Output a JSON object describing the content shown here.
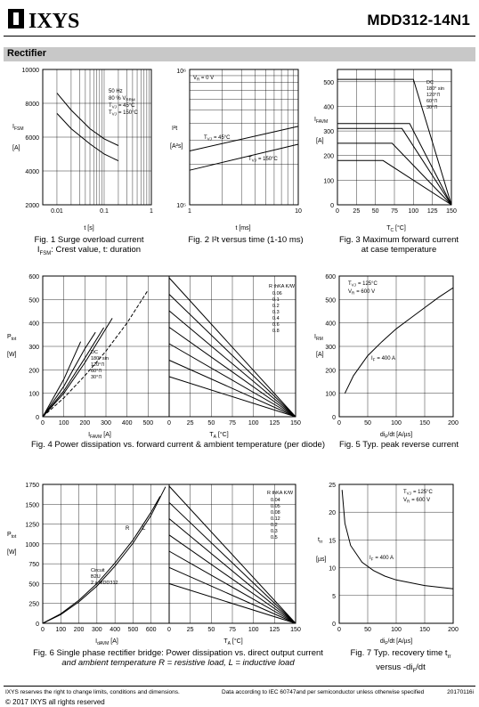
{
  "header": {
    "logo_text": "IXYS",
    "part_number": "MDD312-14N1"
  },
  "section": {
    "title": "Rectifier"
  },
  "figures": {
    "fig1": {
      "caption1": "Fig. 1  Surge overload current",
      "caption2_sym": "I",
      "caption2_sub": "FSM",
      "caption2_rest": ": Crest value, t: duration",
      "ylabel": "I",
      "ylabel_sub": "FSM",
      "yunit": "[A]",
      "xlabel": "t  [s]",
      "legend": [
        "50 Hz",
        "80 % V",
        "T",
        "= 45°C",
        "T",
        "= 150°C"
      ],
      "legend_subs": [
        "RRM",
        "VJ",
        "VJ"
      ]
    },
    "fig2": {
      "caption": "Fig. 2  I²t versus time (1-10 ms)",
      "ylabel": "I²t",
      "yunit": "[A²s]",
      "xlabel": "t  [ms]",
      "label_vr": "V",
      "label_vr_sub": "R",
      "label_vr_rest": " = 0 V",
      "label_45": "= 45°C",
      "label_150": "= 150°C"
    },
    "fig3": {
      "caption1": "Fig. 3  Maximum forward current",
      "caption2": "at case temperature",
      "ylabel": "I",
      "ylabel_sub": "FAVM",
      "yunit": "[A]",
      "xlabel": "T",
      "xlabel_sub": "C",
      "xunit": " [°C]",
      "legend": [
        "DC",
        "180° sin",
        "120°⊓",
        "60°⊓",
        "30°⊓"
      ]
    },
    "fig4": {
      "caption": "Fig. 4  Power dissipation vs. forward current & ambient temperature (per diode)",
      "ylabel": "P",
      "ylabel_sub": "tot",
      "yunit": "[W]",
      "xlabel_left": "I",
      "xlabel_left_sub": "FAVM",
      "xlabel_left_unit": "  [A]",
      "xlabel_right": "T",
      "xlabel_right_sub": "A",
      "xlabel_right_unit": " [°C]",
      "legend": [
        "DC",
        "180° sin",
        "120°⊓",
        "60°⊓",
        "30°⊓"
      ],
      "rthka_title": "R",
      "rthka_sub": "thKA",
      "rthka_unit": " K/W",
      "rthka_values": [
        "0.06",
        "0.1",
        "0.2",
        "0.3",
        "0.4",
        "0.6",
        "0.8"
      ]
    },
    "fig5": {
      "caption": "Fig. 5  Typ. peak reverse current",
      "ylabel": "I",
      "ylabel_sub": "RM",
      "yunit": "[A]",
      "xlabel": "di",
      "xlabel_sub": "F",
      "xunit": "/dt  [A/µs]",
      "cond1": "= 125°C",
      "cond2": "= 600 V",
      "curve_label": "= 400 A"
    },
    "fig6": {
      "caption1": "Fig. 6  Single phase rectifier bridge: Power dissipation vs. direct output current",
      "caption2": "and ambient temperature   R = resistive load,  L = inductive load",
      "ylabel": "P",
      "ylabel_sub": "tot",
      "yunit": "[W]",
      "xlabel_left": "I",
      "xlabel_left_sub": "dAVM",
      "xlabel_left_unit": "  [A]",
      "xlabel_right": "T",
      "xlabel_right_sub": "A",
      "xlabel_right_unit": " [°C]",
      "circuit": [
        "Circuit",
        "B2U",
        "2 x MDD312"
      ],
      "label_r": "R",
      "label_l": "L",
      "rthka_title": "R",
      "rthka_sub": "thKA",
      "rthka_unit": " K/W",
      "rthka_values": [
        "0.04",
        "0.05",
        "0.08",
        "0.12",
        "0.2",
        "0.3",
        "0.5"
      ]
    },
    "fig7": {
      "caption1": "Fig. 7  Typ. recovery time t",
      "caption1_sub": "rr",
      "caption2": "versus -di",
      "caption2_sub": "F",
      "caption2_rest": "/dt",
      "ylabel": "t",
      "ylabel_sub": "rr",
      "yunit": "[µs]",
      "xlabel": "di",
      "xlabel_sub": "F",
      "xunit": "/dt  [A/µs]",
      "cond1": "= 125°C",
      "cond2": "= 600 V",
      "curve_label": "= 400 A"
    }
  },
  "chart_data": [
    {
      "type": "line",
      "id": "fig1",
      "title": "Surge overload current",
      "xlabel": "t [s]",
      "ylabel": "IFSM [A]",
      "xscale": "log",
      "xlim": [
        0.005,
        1
      ],
      "ylim": [
        2000,
        10000
      ],
      "x_ticks": [
        "0.01",
        "0.1",
        "1"
      ],
      "y_ticks": [
        2000,
        4000,
        6000,
        8000,
        10000
      ],
      "series": [
        {
          "name": "TVJ = 45°C",
          "x": [
            0.01,
            0.02,
            0.05,
            0.1,
            0.2
          ],
          "y": [
            8600,
            7600,
            6500,
            5900,
            5500
          ]
        },
        {
          "name": "TVJ = 150°C",
          "x": [
            0.01,
            0.02,
            0.05,
            0.1,
            0.2
          ],
          "y": [
            7400,
            6500,
            5600,
            5000,
            4600
          ]
        }
      ]
    },
    {
      "type": "line",
      "id": "fig2",
      "title": "I²t versus time (1-10 ms)",
      "xlabel": "t [ms]",
      "ylabel": "I²t [A²s]",
      "xscale": "log",
      "yscale": "log",
      "xlim": [
        1,
        10
      ],
      "ylim": [
        100000,
        1000000
      ],
      "x_ticks": [
        "1",
        "10"
      ],
      "y_ticks": [
        "10⁵",
        "10⁶"
      ],
      "series": [
        {
          "name": "TVJ = 45°C",
          "x": [
            1,
            10
          ],
          "y": [
            250000,
            380000
          ]
        },
        {
          "name": "TVJ = 150°C",
          "x": [
            1,
            10
          ],
          "y": [
            180000,
            280000
          ]
        }
      ]
    },
    {
      "type": "line",
      "id": "fig3",
      "title": "Maximum forward current at case temperature",
      "xlabel": "TC [°C]",
      "ylabel": "IFAVM [A]",
      "xlim": [
        0,
        150
      ],
      "ylim": [
        0,
        550
      ],
      "x_ticks": [
        0,
        25,
        50,
        75,
        100,
        125,
        150
      ],
      "y_ticks": [
        0,
        100,
        200,
        300,
        400,
        500
      ],
      "series": [
        {
          "name": "DC",
          "x": [
            0,
            100,
            150
          ],
          "y": [
            510,
            510,
            0
          ]
        },
        {
          "name": "180° sin",
          "x": [
            0,
            95,
            150
          ],
          "y": [
            330,
            330,
            0
          ]
        },
        {
          "name": "120°⊓",
          "x": [
            0,
            85,
            150
          ],
          "y": [
            310,
            310,
            0
          ]
        },
        {
          "name": "60°⊓",
          "x": [
            0,
            72,
            150
          ],
          "y": [
            250,
            250,
            0
          ]
        },
        {
          "name": "30°⊓",
          "x": [
            0,
            60,
            150
          ],
          "y": [
            180,
            180,
            0
          ]
        }
      ]
    },
    {
      "type": "line",
      "id": "fig4",
      "title": "Power dissipation vs. forward current & ambient temperature (per diode)",
      "xlabel": "IFAVM [A] / TA [°C]",
      "ylabel": "Ptot [W]",
      "xlim": [
        0,
        600
      ],
      "ylim": [
        0,
        600
      ],
      "x_ticks_left": [
        0,
        100,
        200,
        300,
        400,
        500
      ],
      "x_ticks_right": [
        0,
        25,
        50,
        75,
        100,
        125,
        150
      ],
      "y_ticks": [
        0,
        100,
        200,
        300,
        400,
        500,
        600
      ],
      "series": [
        {
          "name": "DC",
          "x": [
            0,
            100,
            200,
            300,
            400,
            500
          ],
          "y": [
            0,
            80,
            175,
            280,
            400,
            540
          ]
        },
        {
          "name": "180° sin",
          "x": [
            0,
            100,
            200,
            330
          ],
          "y": [
            0,
            100,
            230,
            420
          ]
        },
        {
          "name": "120°⊓",
          "x": [
            0,
            100,
            200,
            290
          ],
          "y": [
            0,
            110,
            250,
            380
          ]
        },
        {
          "name": "60°⊓",
          "x": [
            0,
            100,
            200,
            250
          ],
          "y": [
            0,
            130,
            290,
            360
          ]
        },
        {
          "name": "30°⊓",
          "x": [
            0,
            100,
            180
          ],
          "y": [
            0,
            160,
            320
          ]
        }
      ],
      "rthka": [
        "0.06",
        "0.1",
        "0.2",
        "0.3",
        "0.4",
        "0.6",
        "0.8"
      ]
    },
    {
      "type": "line",
      "id": "fig5",
      "title": "Typ. peak reverse current",
      "xlabel": "diF/dt [A/µs]",
      "ylabel": "IRM [A]",
      "xlim": [
        0,
        200
      ],
      "ylim": [
        0,
        600
      ],
      "x_ticks": [
        0,
        50,
        100,
        150,
        200
      ],
      "y_ticks": [
        0,
        100,
        200,
        300,
        400,
        500,
        600
      ],
      "series": [
        {
          "name": "IF = 400 A",
          "x": [
            10,
            25,
            50,
            75,
            100,
            125,
            150,
            175,
            200
          ],
          "y": [
            100,
            175,
            260,
            320,
            375,
            420,
            465,
            510,
            550
          ]
        }
      ]
    },
    {
      "type": "line",
      "id": "fig6",
      "title": "Single phase rectifier bridge: Power dissipation vs. direct output current and ambient temperature",
      "xlabel": "IdAVM [A] / TA [°C]",
      "ylabel": "Ptot [W]",
      "xlim": [
        0,
        700
      ],
      "ylim": [
        0,
        1750
      ],
      "x_ticks_left": [
        0,
        100,
        200,
        300,
        400,
        500,
        600
      ],
      "x_ticks_right": [
        0,
        25,
        50,
        75,
        100,
        125,
        150
      ],
      "y_ticks": [
        0,
        250,
        500,
        750,
        1000,
        1250,
        1500,
        1750
      ],
      "series": [
        {
          "name": "R",
          "x": [
            0,
            100,
            200,
            300,
            400,
            500,
            600,
            650
          ],
          "y": [
            0,
            120,
            290,
            500,
            760,
            1050,
            1400,
            1600
          ]
        },
        {
          "name": "L",
          "x": [
            0,
            100,
            200,
            300,
            400,
            500,
            600,
            680
          ],
          "y": [
            0,
            110,
            270,
            470,
            720,
            1010,
            1360,
            1720
          ]
        }
      ],
      "rthka": [
        "0.04",
        "0.05",
        "0.08",
        "0.12",
        "0.2",
        "0.3",
        "0.5"
      ]
    },
    {
      "type": "line",
      "id": "fig7",
      "title": "Typ. recovery time trr versus -diF/dt",
      "xlabel": "diF/dt [A/µs]",
      "ylabel": "trr [µs]",
      "xlim": [
        0,
        200
      ],
      "ylim": [
        0,
        25
      ],
      "x_ticks": [
        0,
        50,
        100,
        150,
        200
      ],
      "y_ticks": [
        0,
        5,
        10,
        15,
        20,
        25
      ],
      "series": [
        {
          "name": "IF = 400 A",
          "x": [
            5,
            10,
            20,
            40,
            60,
            80,
            100,
            150,
            200
          ],
          "y": [
            24,
            18,
            14,
            11,
            9.5,
            8.5,
            7.8,
            6.8,
            6.2
          ]
        }
      ]
    }
  ],
  "footer": {
    "left": "IXYS reserves the right to change limits, conditions and dimensions.",
    "center": "Data according to IEC 60747and per semiconductor unless otherwise specified",
    "right": "20170116i",
    "copyright": "© 2017 IXYS all rights reserved"
  }
}
